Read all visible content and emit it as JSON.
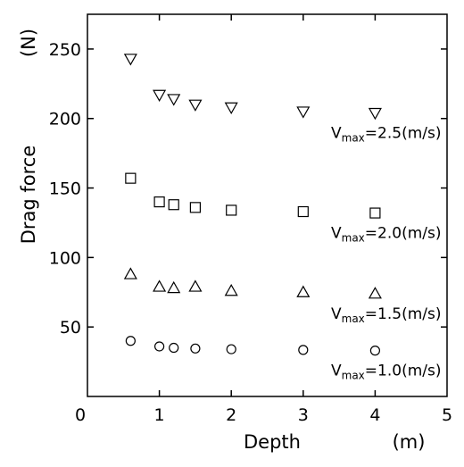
{
  "chart_data": {
    "type": "scatter",
    "xlabel": "Depth",
    "xunit": "(m)",
    "ylabel": "Drag force",
    "yunit": "(N)",
    "xlim": [
      0,
      5
    ],
    "ylim": [
      0,
      275
    ],
    "xticks": [
      "0",
      "1",
      "2",
      "3",
      "4",
      "5"
    ],
    "yticks": [
      "50",
      "100",
      "150",
      "200",
      "250"
    ],
    "grid": false,
    "series": [
      {
        "name_main": "V",
        "name_sub": "max",
        "name_tail": "=1.0(m/s)",
        "marker": "circle",
        "x": [
          0.6,
          1.0,
          1.2,
          1.5,
          2.0,
          3.0,
          4.0
        ],
        "y": [
          40,
          36,
          35,
          34.5,
          34,
          33.5,
          33
        ]
      },
      {
        "name_main": "V",
        "name_sub": "max",
        "name_tail": "=1.5(m/s)",
        "marker": "triangle-up",
        "x": [
          0.6,
          1.0,
          1.2,
          1.5,
          2.0,
          3.0,
          4.0
        ],
        "y": [
          88,
          79,
          78,
          79,
          76,
          75,
          74
        ]
      },
      {
        "name_main": "V",
        "name_sub": "max",
        "name_tail": "=2.0(m/s)",
        "marker": "square",
        "x": [
          0.6,
          1.0,
          1.2,
          1.5,
          2.0,
          3.0,
          4.0
        ],
        "y": [
          157,
          140,
          138,
          136,
          134,
          133,
          132
        ]
      },
      {
        "name_main": "V",
        "name_sub": "max",
        "name_tail": "=2.5(m/s)",
        "marker": "triangle-down",
        "x": [
          0.6,
          1.0,
          1.2,
          1.5,
          2.0,
          3.0,
          4.0
        ],
        "y": [
          243,
          217,
          214,
          210,
          208,
          205,
          204
        ]
      }
    ]
  }
}
